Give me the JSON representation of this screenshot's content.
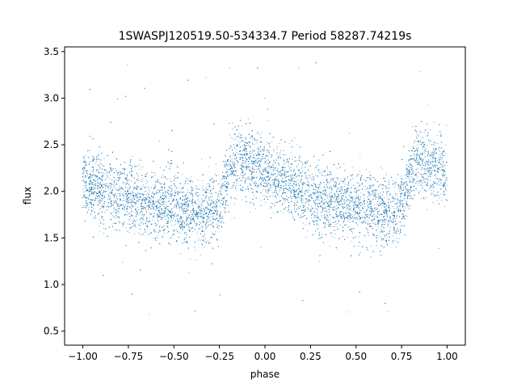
{
  "chart_data": {
    "type": "scatter",
    "title": "1SWASPJ120519.50-534334.7 Period 58287.74219s",
    "xlabel": "phase",
    "ylabel": "flux",
    "xlim": [
      -1.1,
      1.1
    ],
    "ylim": [
      0.35,
      3.55
    ],
    "x_ticks": [
      -1.0,
      -0.75,
      -0.5,
      -0.25,
      0.0,
      0.25,
      0.5,
      0.75,
      1.0
    ],
    "x_tick_labels": [
      "−1.00",
      "−0.75",
      "−0.50",
      "−0.25",
      "0.00",
      "0.25",
      "0.50",
      "0.75",
      "1.00"
    ],
    "y_ticks": [
      0.5,
      1.0,
      1.5,
      2.0,
      2.5,
      3.0,
      3.5
    ],
    "y_tick_labels": [
      "0.5",
      "1.0",
      "1.5",
      "2.0",
      "2.5",
      "3.0",
      "3.5"
    ],
    "grid": false,
    "legend": "none",
    "marker_color": "#1f77b4",
    "series": [
      {
        "x": [
          -1.0,
          -0.9,
          -0.8,
          -0.7,
          -0.6,
          -0.5,
          -0.4,
          -0.3,
          -0.26,
          -0.22,
          -0.18,
          -0.15,
          -0.1,
          -0.05,
          0.0,
          0.1,
          0.2,
          0.3,
          0.4,
          0.5,
          0.6,
          0.7,
          0.74,
          0.78,
          0.82,
          0.85,
          0.9,
          0.95,
          1.0
        ],
        "y": [
          2.1,
          2.02,
          1.96,
          1.92,
          1.86,
          1.83,
          1.8,
          1.77,
          1.8,
          2.05,
          2.3,
          2.35,
          2.3,
          2.25,
          2.2,
          2.1,
          2.0,
          1.92,
          1.86,
          1.83,
          1.8,
          1.77,
          1.8,
          2.05,
          2.3,
          2.35,
          2.3,
          2.25,
          2.2
        ],
        "scatter_sd": 0.18,
        "outlier_range": [
          0.5,
          3.4
        ]
      }
    ]
  }
}
